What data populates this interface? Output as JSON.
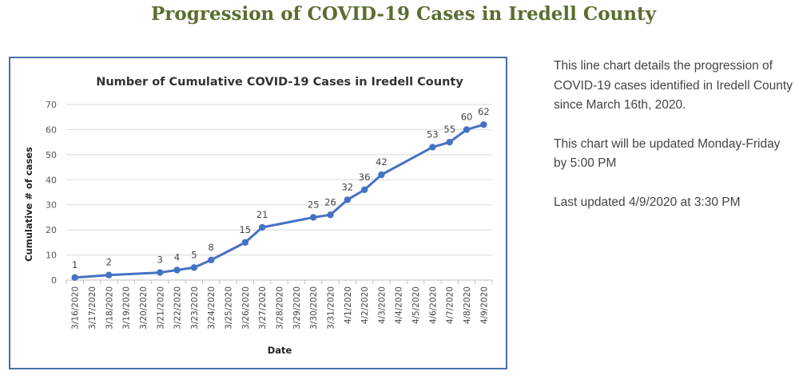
{
  "page": {
    "heading": "Progression of COVID-19 Cases in Iredell County"
  },
  "side_panel": {
    "description": "This line chart details the progression of COVID-19 cases identified in Iredell County since March 16th, 2020.",
    "update_schedule": "This chart will be updated Monday-Friday by 5:00 PM",
    "last_updated": "Last updated 4/9/2020 at 3:30 PM"
  },
  "colors": {
    "heading": "#5a6e2f",
    "series_line": "#4472c4",
    "frame_border": "#4a6fa5",
    "gridline": "#d9d9d9"
  },
  "chart_data": {
    "type": "line",
    "title": "Number of Cumulative COVID-19 Cases in Iredell County",
    "xlabel": "Date",
    "ylabel": "Cumulative # of cases",
    "ylim": [
      0,
      70
    ],
    "yticks": [
      0,
      10,
      20,
      30,
      40,
      50,
      60,
      70
    ],
    "grid": "horizontal",
    "categories": [
      "3/16/2020",
      "3/17/2020",
      "3/18/2020",
      "3/19/2020",
      "3/20/2020",
      "3/21/2020",
      "3/22/2020",
      "3/23/2020",
      "3/24/2020",
      "3/25/2020",
      "3/26/2020",
      "3/27/2020",
      "3/28/2020",
      "3/29/2020",
      "3/30/2020",
      "3/31/2020",
      "4/1/2020",
      "4/2/2020",
      "4/3/2020",
      "4/4/2020",
      "4/5/2020",
      "4/6/2020",
      "4/7/2020",
      "4/8/2020",
      "4/9/2020"
    ],
    "points": [
      {
        "x": "3/16/2020",
        "y": 1
      },
      {
        "x": "3/18/2020",
        "y": 2
      },
      {
        "x": "3/21/2020",
        "y": 3
      },
      {
        "x": "3/22/2020",
        "y": 4
      },
      {
        "x": "3/23/2020",
        "y": 5
      },
      {
        "x": "3/24/2020",
        "y": 8
      },
      {
        "x": "3/26/2020",
        "y": 15
      },
      {
        "x": "3/27/2020",
        "y": 21
      },
      {
        "x": "3/30/2020",
        "y": 25
      },
      {
        "x": "3/31/2020",
        "y": 26
      },
      {
        "x": "4/1/2020",
        "y": 32
      },
      {
        "x": "4/2/2020",
        "y": 36
      },
      {
        "x": "4/3/2020",
        "y": 42
      },
      {
        "x": "4/6/2020",
        "y": 53
      },
      {
        "x": "4/7/2020",
        "y": 55
      },
      {
        "x": "4/8/2020",
        "y": 60
      },
      {
        "x": "4/9/2020",
        "y": 62
      }
    ]
  }
}
